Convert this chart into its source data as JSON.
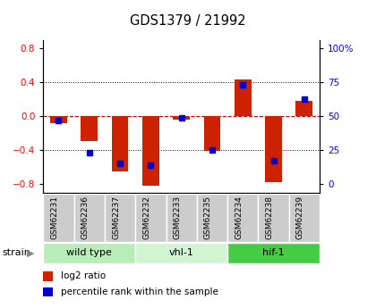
{
  "title": "GDS1379 / 21992",
  "samples": [
    "GSM62231",
    "GSM62236",
    "GSM62237",
    "GSM62232",
    "GSM62233",
    "GSM62235",
    "GSM62234",
    "GSM62238",
    "GSM62239"
  ],
  "log2_ratios": [
    -0.08,
    -0.29,
    -0.65,
    -0.82,
    -0.04,
    -0.41,
    0.43,
    -0.78,
    0.18
  ],
  "percentile_ranks": [
    47,
    23,
    15,
    14,
    49,
    25,
    73,
    17,
    63
  ],
  "groups": [
    {
      "label": "wild type",
      "start": 0,
      "end": 3,
      "color": "#b8edb8"
    },
    {
      "label": "vhl-1",
      "start": 3,
      "end": 6,
      "color": "#d0f5d0"
    },
    {
      "label": "hif-1",
      "start": 6,
      "end": 9,
      "color": "#44cc44"
    }
  ],
  "ylim": [
    -0.9,
    0.9
  ],
  "yticks_left": [
    -0.8,
    -0.4,
    0.0,
    0.4,
    0.8
  ],
  "yticks_right": [
    0,
    25,
    50,
    75,
    100
  ],
  "bar_color": "#cc2200",
  "dot_color": "#0000cc",
  "zero_line_color": "#cc0000",
  "grid_color": "#000000",
  "label_bg": "#cccccc",
  "label_border": "#ffffff"
}
